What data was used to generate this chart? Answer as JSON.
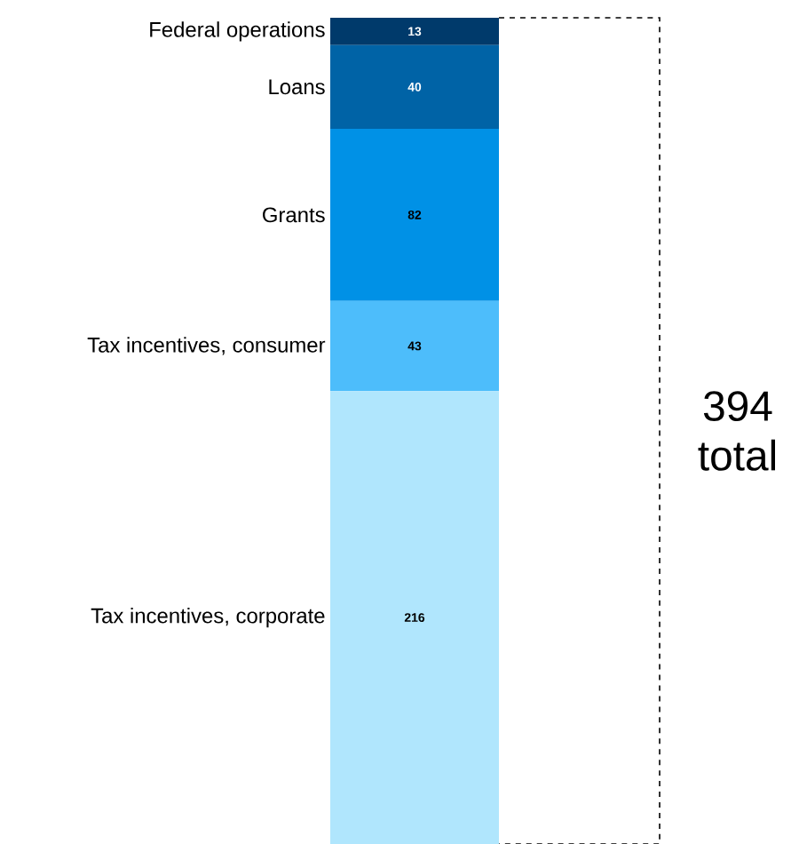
{
  "chart_data": {
    "type": "bar",
    "stacked": true,
    "categories": [
      null
    ],
    "series": [
      {
        "name": "Tax incentives, corporate",
        "color": "#b0e6fd",
        "values": [
          216
        ]
      },
      {
        "name": "Tax incentives, consumer",
        "color": "#4dbdfb",
        "values": [
          43
        ]
      },
      {
        "name": "Grants",
        "color": "#0091e6",
        "values": [
          82
        ]
      },
      {
        "name": "Loans",
        "color": "#0063a6",
        "values": [
          40
        ]
      },
      {
        "name": "Federal operations",
        "color": "#003a6b",
        "values": [
          13
        ]
      }
    ],
    "data_labels": true,
    "annotations": [
      "394 total"
    ]
  }
}
